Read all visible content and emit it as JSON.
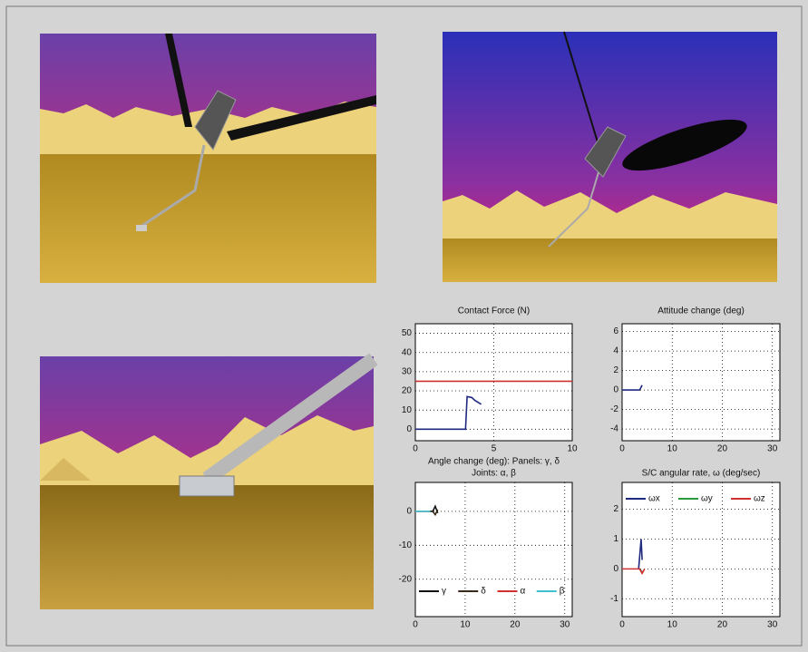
{
  "chart_data": [
    {
      "type": "line",
      "title": "Contact Force (N)",
      "xlim": [
        0,
        10
      ],
      "xticks": [
        0,
        5,
        10
      ],
      "ylim": [
        -6,
        55
      ],
      "yticks": [
        0,
        10,
        20,
        30,
        40,
        50
      ],
      "grid": true,
      "series": [
        {
          "color": "#d03030",
          "x": [
            0,
            10
          ],
          "values": [
            25,
            25
          ]
        },
        {
          "color": "#1f2a80",
          "x": [
            0,
            3.2,
            3.3,
            3.6,
            3.8,
            4.2
          ],
          "values": [
            0,
            0,
            17,
            16.5,
            15,
            13
          ]
        }
      ]
    },
    {
      "type": "line",
      "title": "Attitude change (deg)",
      "xlim": [
        0,
        31.5
      ],
      "xticks": [
        0,
        10,
        20,
        30
      ],
      "ylim": [
        -5.2,
        6.8
      ],
      "yticks": [
        -4,
        -2,
        0,
        2,
        4,
        6
      ],
      "grid": true,
      "series": [
        {
          "color": "#1f2a80",
          "x": [
            0,
            3.5,
            4
          ],
          "values": [
            0,
            0,
            0.5
          ]
        }
      ]
    },
    {
      "type": "line",
      "title": "Angle change (deg): Panels: γ, δ",
      "subtitle": "Joints: α, β",
      "xlim": [
        0,
        31.5
      ],
      "xticks": [
        0,
        10,
        20,
        30
      ],
      "ylim": [
        -31,
        8.5
      ],
      "yticks": [
        -20,
        -10,
        0
      ],
      "grid": true,
      "legend": "bottom",
      "series": [
        {
          "name": "γ",
          "color": "#111111",
          "x": [
            0,
            3.5,
            4,
            4.5
          ],
          "values": [
            0,
            0,
            1.5,
            -0.5
          ]
        },
        {
          "name": "δ",
          "color": "#3a2a1a",
          "x": [
            3.5,
            4,
            4.5
          ],
          "values": [
            0,
            -1,
            0.5
          ]
        },
        {
          "name": "α",
          "color": "#d03030",
          "x": [
            0,
            3
          ],
          "values": [
            0,
            0
          ]
        },
        {
          "name": "β",
          "color": "#40c0d0",
          "x": [
            0,
            3
          ],
          "values": [
            0,
            0
          ]
        }
      ]
    },
    {
      "type": "line",
      "title": "S/C angular rate, ω (deg/sec)",
      "xlim": [
        0,
        31.5
      ],
      "xticks": [
        0,
        10,
        20,
        30
      ],
      "ylim": [
        -1.6,
        2.9
      ],
      "yticks": [
        -1,
        0,
        1,
        2
      ],
      "grid": true,
      "legend": "top",
      "series": [
        {
          "name": "ωx",
          "color": "#1f2a80",
          "x": [
            3.3,
            3.5,
            3.8,
            4
          ],
          "values": [
            0,
            0.4,
            1,
            0.3
          ]
        },
        {
          "name": "ωy",
          "color": "#2a9a3a",
          "x": [
            3.5,
            4
          ],
          "values": [
            0,
            -0.1
          ]
        },
        {
          "name": "ωz",
          "color": "#d03030",
          "x": [
            0,
            3.5,
            4,
            4.5
          ],
          "values": [
            0,
            0,
            -0.15,
            0
          ]
        }
      ]
    }
  ]
}
